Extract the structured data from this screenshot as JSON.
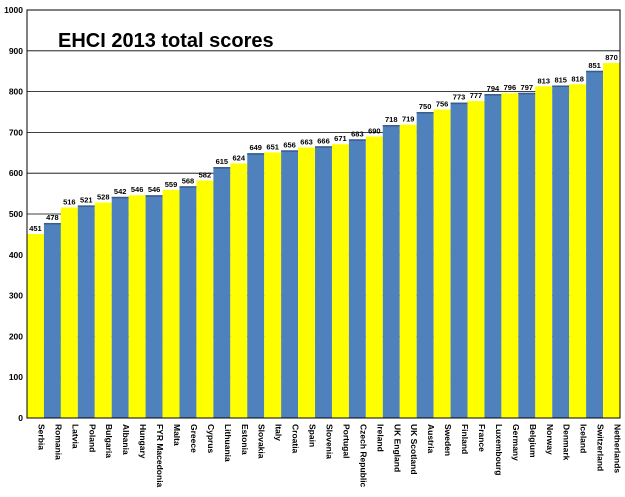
{
  "chart_data": {
    "type": "bar",
    "title": "EHCI 2013 total scores",
    "xlabel": "",
    "ylabel": "",
    "ylim": [
      0,
      1000
    ],
    "yticks": [
      0,
      100,
      200,
      300,
      400,
      500,
      600,
      700,
      800,
      900,
      1000
    ],
    "grid": true,
    "legend": "none",
    "colors": {
      "odd": "#ffff00",
      "even": "#4f81bd",
      "grid": "#000000",
      "border": "#000000"
    },
    "categories": [
      "Serbia",
      "Romania",
      "Latvia",
      "Poland",
      "Bulgaria",
      "Albania",
      "Hungary",
      "FYR Macedonia",
      "Malta",
      "Greece",
      "Cyprus",
      "Lithuania",
      "Estonia",
      "Slovakia",
      "Italy",
      "Croatia",
      "Spain",
      "Slovenia",
      "Portugal",
      "Czech Republic",
      "Ireland",
      "UK England",
      "UK Scotland",
      "Austria",
      "Sweden",
      "Finland",
      "France",
      "Luxembourg",
      "Germany",
      "Belgium",
      "Norway",
      "Denmark",
      "Iceland",
      "Switzerland",
      "Netherlands"
    ],
    "values": [
      451,
      478,
      516,
      521,
      528,
      542,
      546,
      546,
      559,
      568,
      582,
      615,
      624,
      649,
      651,
      656,
      663,
      666,
      671,
      683,
      690,
      718,
      719,
      750,
      756,
      773,
      777,
      794,
      796,
      797,
      813,
      815,
      818,
      851,
      870
    ],
    "data_labels": [
      "451",
      "478",
      "516",
      "521",
      "528",
      "542",
      "546",
      "546",
      "559",
      "568",
      "582",
      "615",
      "624",
      "649",
      "651",
      "656",
      "663",
      "666",
      "671",
      "683",
      "690",
      "718",
      "719",
      "750",
      "756",
      "773",
      "777",
      "794",
      "796",
      "797",
      "813",
      "815",
      "818",
      "851",
      "870"
    ]
  }
}
